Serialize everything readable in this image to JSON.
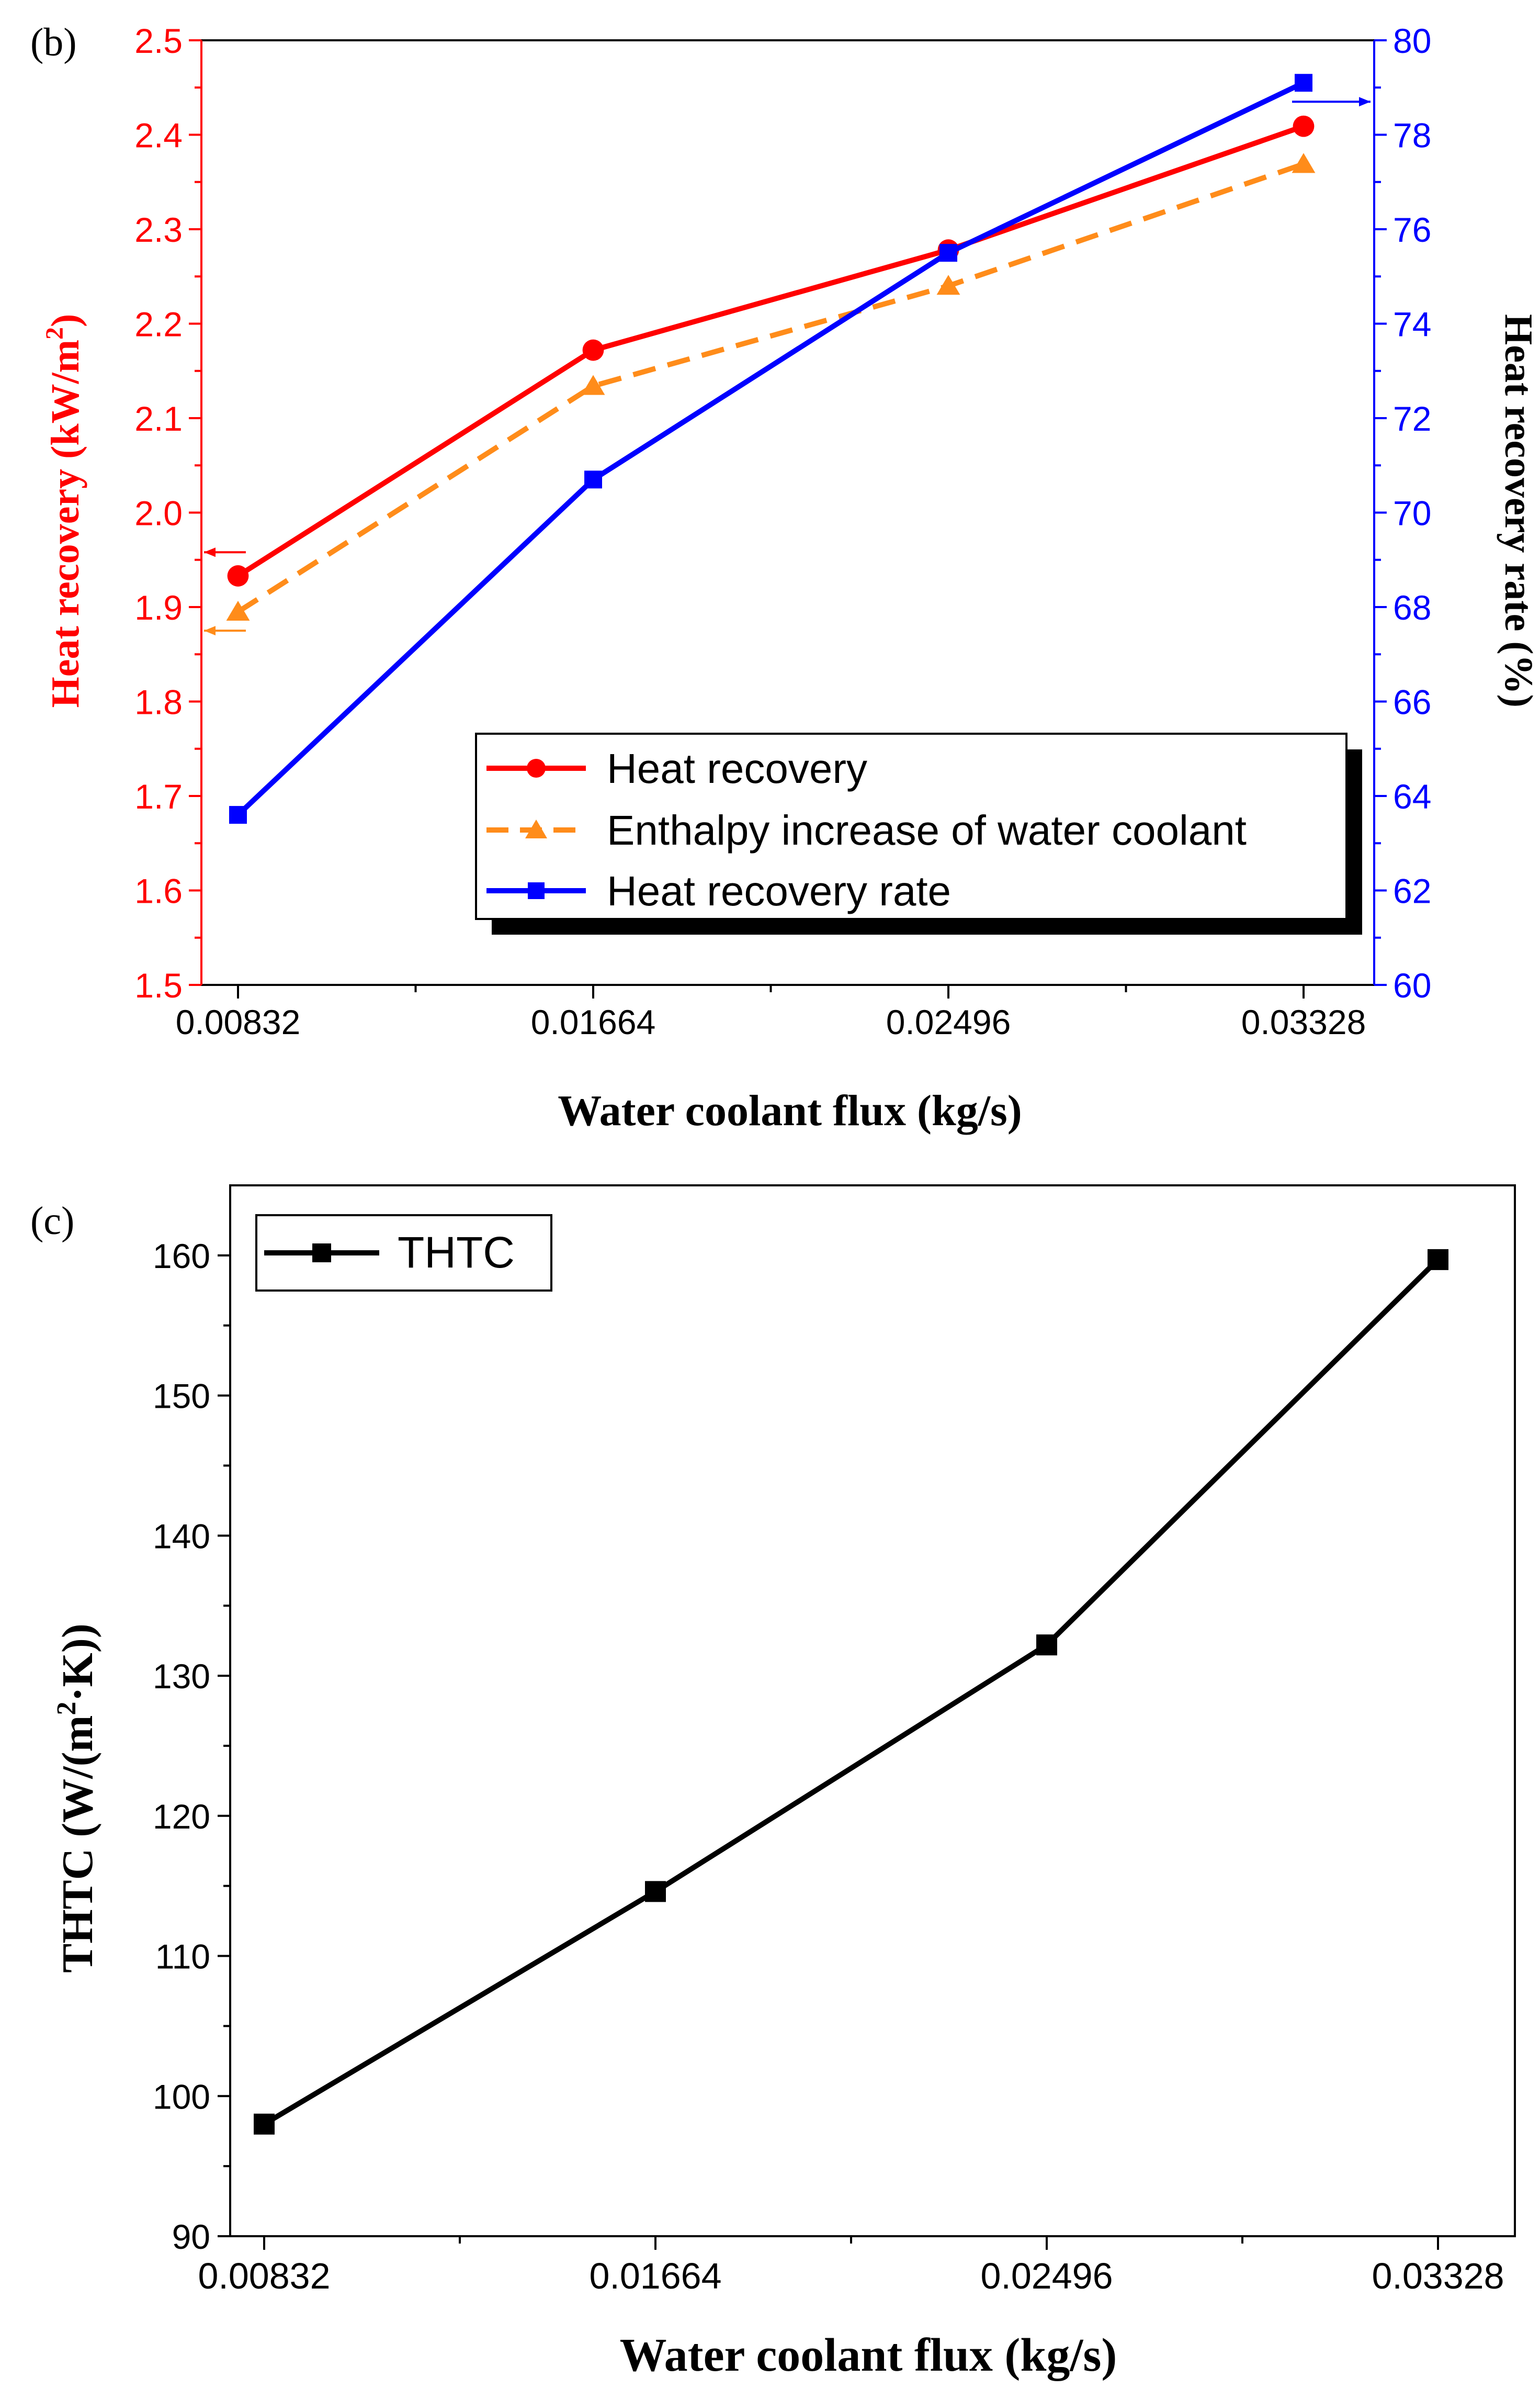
{
  "chart_data": [
    {
      "panel_label": "(b)",
      "type": "line",
      "xlabel": "Water coolant flux (kg/s)",
      "categories": [
        "0.00832",
        "0.01664",
        "0.02496",
        "0.03328"
      ],
      "y_left": {
        "label_main": "Heat recovery (kW/m",
        "label_sup": "2",
        "label_close": ")",
        "ylim": [
          1.5,
          2.5
        ],
        "ticks": [
          "1.5",
          "1.6",
          "1.7",
          "1.8",
          "1.9",
          "2.0",
          "2.1",
          "2.2",
          "2.3",
          "2.4",
          "2.5"
        ],
        "color": "#ff0000"
      },
      "y_right": {
        "label": "Heat recovery rate (%)",
        "ylim": [
          60,
          80
        ],
        "ticks": [
          "60",
          "62",
          "64",
          "66",
          "68",
          "70",
          "72",
          "74",
          "76",
          "78",
          "80"
        ],
        "color": "#0000ff"
      },
      "series": [
        {
          "name": "Heat recovery",
          "axis": "left",
          "values": [
            1.933,
            2.172,
            2.278,
            2.409
          ],
          "color": "#ff0000",
          "marker": "circle",
          "dash": "solid"
        },
        {
          "name": "Enthalpy increase of water coolant",
          "axis": "left",
          "values": [
            1.895,
            2.134,
            2.24,
            2.369
          ],
          "color": "#ff8c1a",
          "marker": "triangle",
          "dash": "dashed"
        },
        {
          "name": "Heat recovery rate",
          "axis": "right",
          "values": [
            63.6,
            70.7,
            75.5,
            79.1
          ],
          "color": "#0000ff",
          "marker": "square",
          "dash": "solid"
        }
      ]
    },
    {
      "panel_label": "(c)",
      "type": "line",
      "xlabel": "Water coolant flux (kg/s)",
      "categories": [
        "0.00832",
        "0.01664",
        "0.02496",
        "0.03328"
      ],
      "ylabel_main": "THTC (W/(m",
      "ylabel_sup": "2",
      "ylabel_close": "·K))",
      "ylim": [
        90,
        165
      ],
      "ticks": [
        "90",
        "100",
        "110",
        "120",
        "130",
        "140",
        "150",
        "160"
      ],
      "series": [
        {
          "name": "THTC",
          "values": [
            98.0,
            114.6,
            132.2,
            159.7
          ],
          "color": "#000000",
          "marker": "square",
          "dash": "solid"
        }
      ]
    }
  ]
}
